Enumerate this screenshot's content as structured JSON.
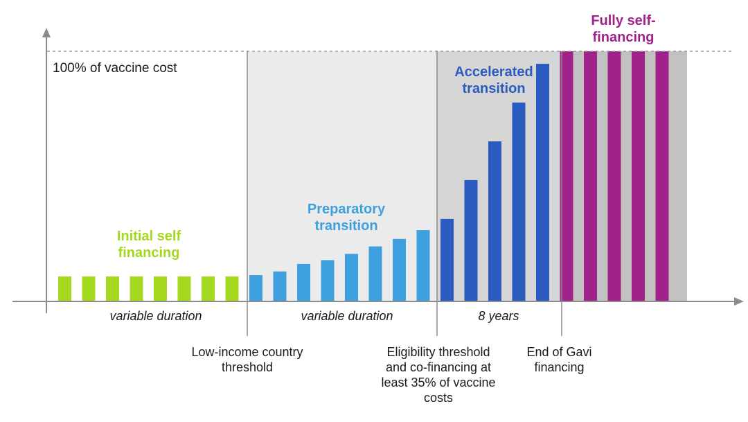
{
  "chart_data": {
    "type": "bar",
    "title": "",
    "xlabel": "",
    "ylabel": "",
    "top_label": "100% of vaccine cost",
    "ylim": [
      0,
      100
    ],
    "phases": [
      {
        "key": "initial",
        "label": "Initial self financing",
        "color": "#a4d81e",
        "values": [
          10,
          10,
          10,
          10,
          10,
          10,
          10,
          10
        ]
      },
      {
        "key": "preparatory",
        "label": "Preparatory transition",
        "color": "#3fa0e0",
        "values": [
          10.5,
          12,
          15,
          16.5,
          19,
          22,
          25,
          28.5
        ]
      },
      {
        "key": "accelerated",
        "label": "Accelerated transition",
        "color": "#2a5cbf",
        "values": [
          33,
          48.5,
          64,
          79.5,
          95
        ]
      },
      {
        "key": "self",
        "label": "Fully self-financing",
        "color": "#a0228a",
        "values": [
          100,
          100,
          100,
          100,
          100
        ]
      }
    ],
    "durations": [
      "variable duration",
      "variable duration",
      "8 years"
    ],
    "milestones": [
      "Low-income country threshold",
      "Eligibility threshold and co-financing at least 35% of vaccine costs",
      "End of Gavi financing"
    ],
    "colors": {
      "axis": "#8c8c8c",
      "prep_bg": "#ebebeb",
      "accel_bg": "#d6d6d6",
      "self_bg": "#c2c2c2"
    }
  }
}
